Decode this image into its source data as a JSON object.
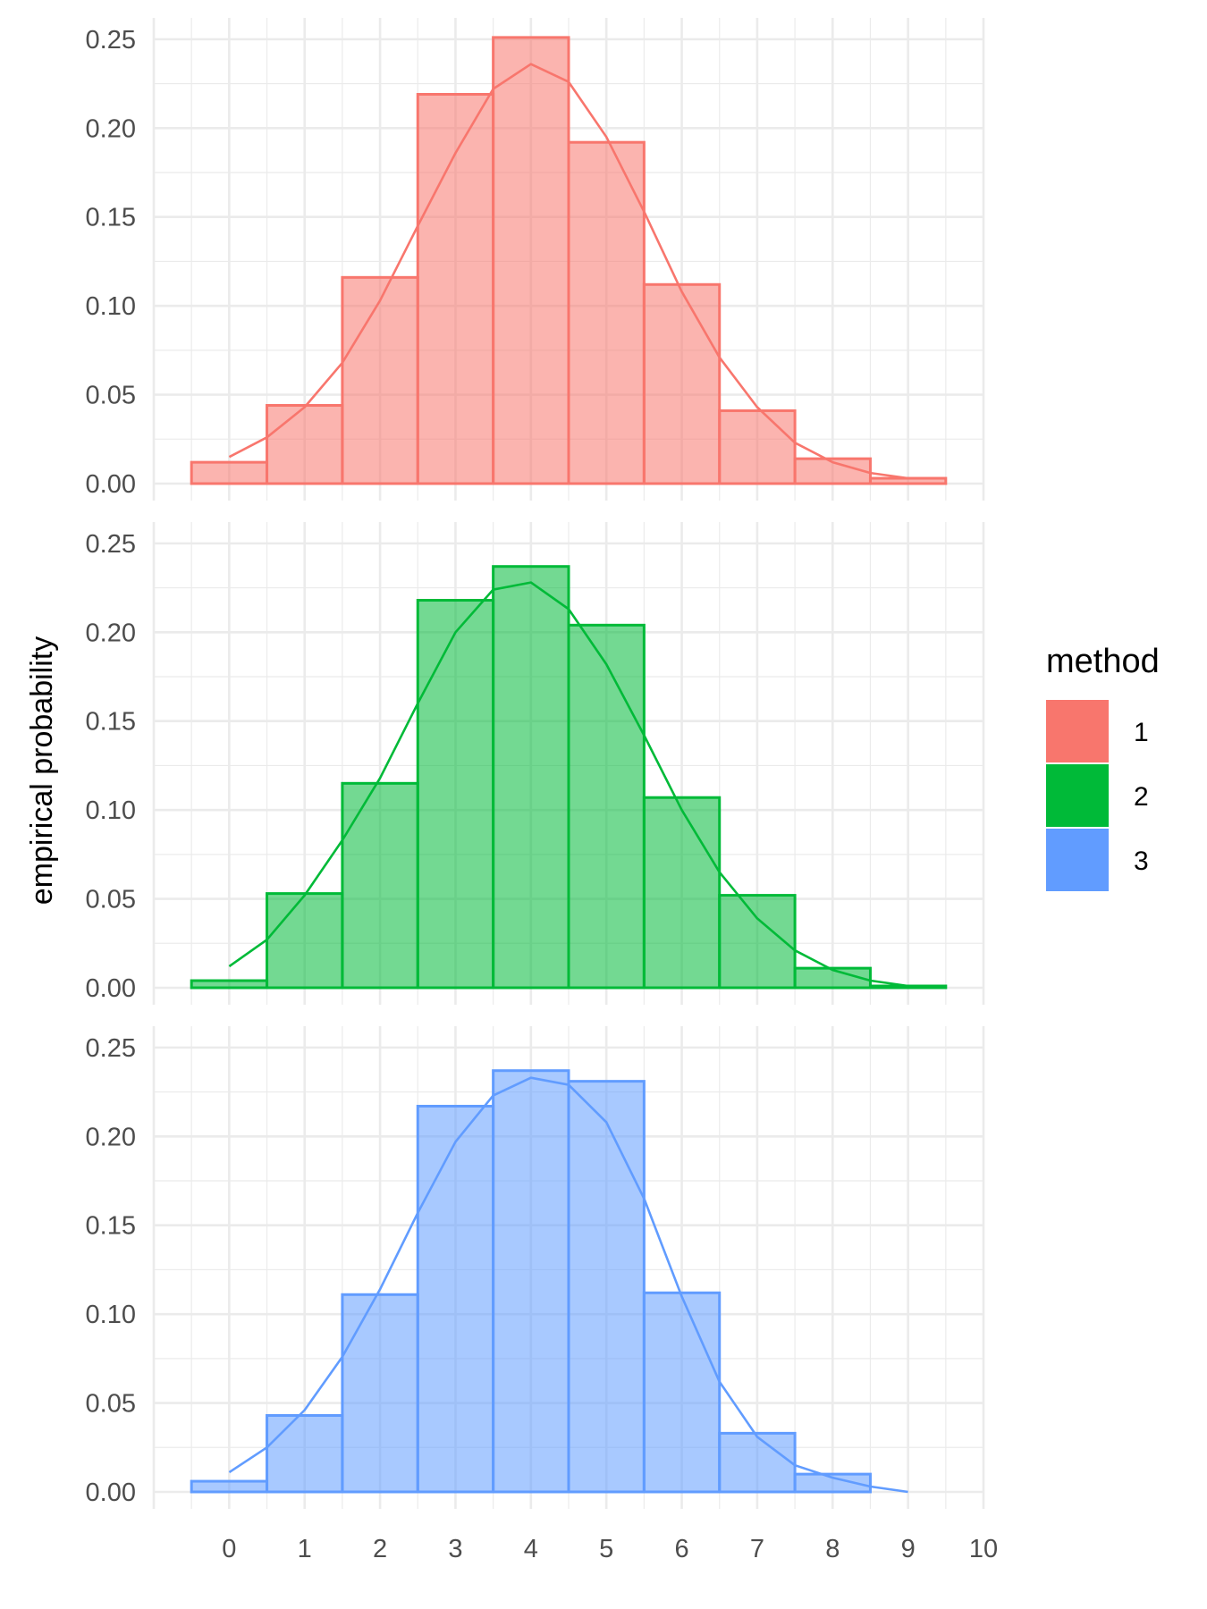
{
  "chart_data": {
    "type": "bar",
    "title": "",
    "xlabel": "",
    "ylabel": "empirical probability",
    "x_ticks": [
      "0",
      "1",
      "2",
      "3",
      "4",
      "5",
      "6",
      "7",
      "8",
      "9",
      "10"
    ],
    "y_ticks": [
      "0.00",
      "0.05",
      "0.10",
      "0.15",
      "0.20",
      "0.25"
    ],
    "xlim": [
      -1,
      10
    ],
    "ylim": [
      0,
      0.25
    ],
    "grid": true,
    "facets": "stacked vertically, one per method, shared x-axis",
    "legend": {
      "title": "method",
      "placement": "right",
      "entries": [
        {
          "label": "1",
          "color": "#F8766D"
        },
        {
          "label": "2",
          "color": "#00BA38"
        },
        {
          "label": "3",
          "color": "#619CFF"
        }
      ]
    },
    "series": [
      {
        "name": "1",
        "color": "#F8766D",
        "bins_x": [
          0,
          1,
          2,
          3,
          4,
          5,
          6,
          7,
          8,
          9
        ],
        "values": [
          0.012,
          0.044,
          0.116,
          0.219,
          0.251,
          0.192,
          0.112,
          0.041,
          0.014,
          0.003
        ],
        "density_curve": {
          "x": [
            0,
            0.5,
            1,
            1.5,
            2,
            2.5,
            3,
            3.5,
            4,
            4.5,
            5,
            5.5,
            6,
            6.5,
            7,
            7.5,
            8,
            8.5,
            9
          ],
          "y": [
            0.015,
            0.026,
            0.043,
            0.068,
            0.103,
            0.145,
            0.186,
            0.222,
            0.236,
            0.226,
            0.195,
            0.153,
            0.108,
            0.071,
            0.043,
            0.023,
            0.012,
            0.006,
            0.003
          ]
        }
      },
      {
        "name": "2",
        "color": "#00BA38",
        "bins_x": [
          0,
          1,
          2,
          3,
          4,
          5,
          6,
          7,
          8,
          9
        ],
        "values": [
          0.004,
          0.053,
          0.115,
          0.218,
          0.237,
          0.204,
          0.107,
          0.052,
          0.011,
          0.001
        ],
        "density_curve": {
          "x": [
            0,
            0.5,
            1,
            1.5,
            2,
            2.5,
            3,
            3.5,
            4,
            4.5,
            5,
            5.5,
            6,
            6.5,
            7,
            7.5,
            8,
            8.5,
            9
          ],
          "y": [
            0.012,
            0.027,
            0.052,
            0.083,
            0.118,
            0.16,
            0.2,
            0.224,
            0.228,
            0.213,
            0.182,
            0.142,
            0.1,
            0.065,
            0.039,
            0.021,
            0.01,
            0.004,
            0.001
          ]
        }
      },
      {
        "name": "3",
        "color": "#619CFF",
        "bins_x": [
          0,
          1,
          2,
          3,
          4,
          5,
          6,
          7,
          8,
          9
        ],
        "values": [
          0.006,
          0.043,
          0.111,
          0.217,
          0.237,
          0.231,
          0.112,
          0.033,
          0.01,
          0.0
        ],
        "density_curve": {
          "x": [
            0,
            0.5,
            1,
            1.5,
            2,
            2.5,
            3,
            3.5,
            4,
            4.5,
            5,
            5.5,
            6,
            6.5,
            7,
            7.5,
            8,
            8.5,
            9
          ],
          "y": [
            0.011,
            0.025,
            0.046,
            0.076,
            0.114,
            0.157,
            0.197,
            0.223,
            0.233,
            0.229,
            0.208,
            0.165,
            0.11,
            0.062,
            0.031,
            0.015,
            0.008,
            0.003,
            0.0
          ]
        }
      }
    ]
  }
}
